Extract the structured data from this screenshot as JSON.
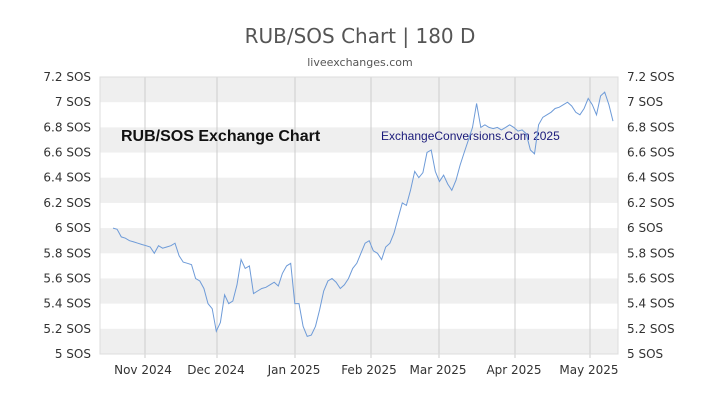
{
  "title": "RUB/SOS Chart | 180 D",
  "subtitle": "liveexchanges.com",
  "watermark_left": "RUB/SOS Exchange Chart",
  "watermark_right": "ExchangeConversions.Com 2025",
  "colors": {
    "line": "#6e9bd8",
    "band": "#efefef",
    "grid": "#cccccc",
    "text": "#333333"
  },
  "chart_data": {
    "type": "line",
    "title": "RUB/SOS Chart | 180 D",
    "subtitle": "liveexchanges.com",
    "ylim": [
      5.0,
      7.2
    ],
    "y_ticks": [
      5,
      5.2,
      5.4,
      5.6,
      5.8,
      6,
      6.2,
      6.4,
      6.6,
      6.8,
      7,
      7.2
    ],
    "y_tick_labels": [
      "5 SOS",
      "5.2 SOS",
      "5.4 SOS",
      "5.6 SOS",
      "5.8 SOS",
      "6 SOS",
      "6.2 SOS",
      "6.4 SOS",
      "6.6 SOS",
      "6.8 SOS",
      "7 SOS",
      "7.2 SOS"
    ],
    "x_ticks": [
      "Nov 2024",
      "Dec 2024",
      "Jan 2025",
      "Feb 2025",
      "Mar 2025",
      "Apr 2025",
      "May 2025"
    ],
    "grid": true,
    "series": [
      {
        "values": [
          6.0,
          5.99,
          5.93,
          5.92,
          5.9,
          5.89,
          5.88,
          5.87,
          5.86,
          5.85,
          5.8,
          5.86,
          5.84,
          5.85,
          5.86,
          5.88,
          5.78,
          5.73,
          5.72,
          5.71,
          5.6,
          5.58,
          5.52,
          5.4,
          5.36,
          5.18,
          5.25,
          5.47,
          5.4,
          5.42,
          5.55,
          5.75,
          5.68,
          5.7,
          5.48,
          5.5,
          5.52,
          5.53,
          5.55,
          5.57,
          5.54,
          5.64,
          5.7,
          5.72,
          5.4,
          5.4,
          5.22,
          5.14,
          5.15,
          5.22,
          5.35,
          5.5,
          5.58,
          5.6,
          5.57,
          5.52,
          5.55,
          5.6,
          5.68,
          5.72,
          5.8,
          5.88,
          5.9,
          5.82,
          5.8,
          5.75,
          5.85,
          5.88,
          5.96,
          6.08,
          6.2,
          6.18,
          6.3,
          6.45,
          6.4,
          6.44,
          6.6,
          6.62,
          6.45,
          6.37,
          6.42,
          6.35,
          6.3,
          6.38,
          6.5,
          6.6,
          6.7,
          6.8,
          6.99,
          6.8,
          6.82,
          6.8,
          6.79,
          6.8,
          6.78,
          6.8,
          6.82,
          6.8,
          6.77,
          6.78,
          6.75,
          6.62,
          6.59,
          6.82,
          6.88,
          6.9,
          6.92,
          6.95,
          6.96,
          6.98,
          7.0,
          6.97,
          6.92,
          6.9,
          6.95,
          7.03,
          6.98,
          6.9,
          7.05,
          7.08,
          6.98,
          6.85
        ]
      }
    ]
  }
}
